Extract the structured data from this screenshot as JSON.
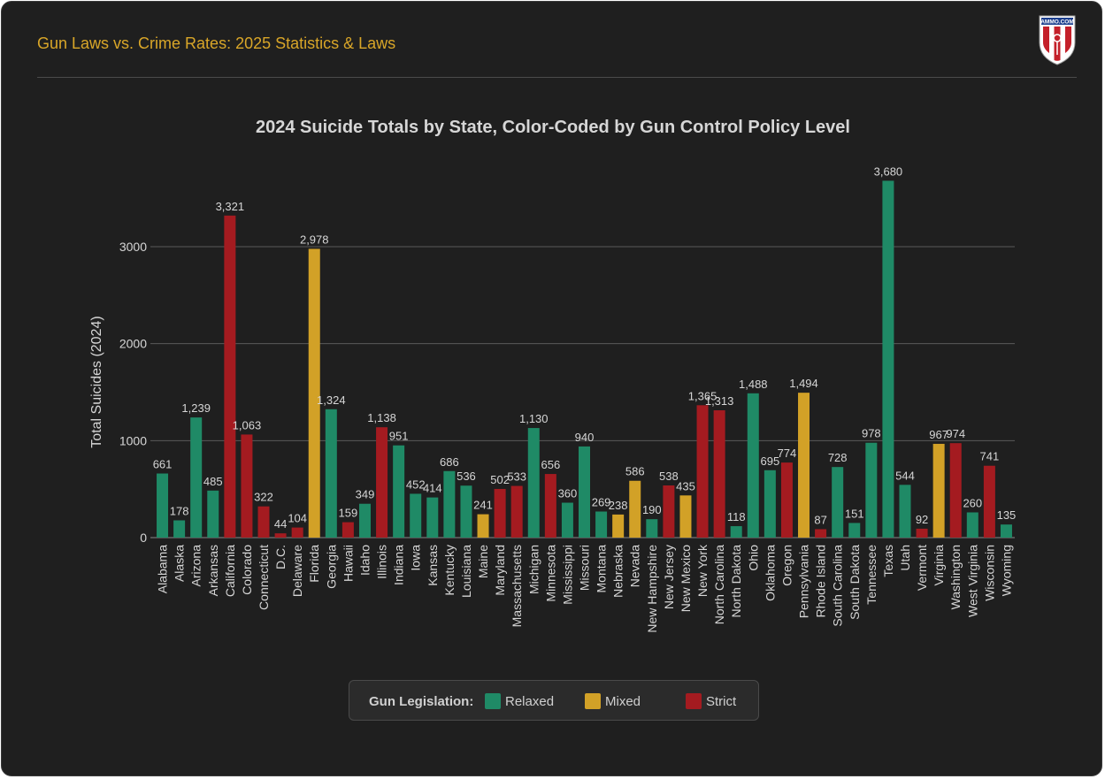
{
  "header": {
    "title": "Gun Laws vs. Crime Rates: 2025 Statistics & Laws",
    "logo_text": "AMMO.COM"
  },
  "colors": {
    "Relaxed": "#1f8a66",
    "Mixed": "#d2a127",
    "Strict": "#a41b20",
    "grid": "#5a5a5a",
    "text": "#d6d6d6"
  },
  "legend": {
    "title": "Gun Legislation:",
    "items": [
      {
        "label": "Relaxed",
        "color": "#1f8a66"
      },
      {
        "label": "Mixed",
        "color": "#d2a127"
      },
      {
        "label": "Strict",
        "color": "#a41b20"
      }
    ]
  },
  "chart_data": {
    "type": "bar",
    "title": "2024 Suicide Totals by State, Color-Coded by Gun Control Policy Level",
    "xlabel": "",
    "ylabel": "Total Suicides (2024)",
    "ylim": [
      0,
      3700
    ],
    "yticks": [
      0,
      1000,
      2000,
      3000
    ],
    "grid": true,
    "legend_position": "bottom-center",
    "categories": [
      "Alabama",
      "Alaska",
      "Arizona",
      "Arkansas",
      "California",
      "Colorado",
      "Connecticut",
      "D.C.",
      "Delaware",
      "Florida",
      "Georgia",
      "Hawaii",
      "Idaho",
      "Illinois",
      "Indiana",
      "Iowa",
      "Kansas",
      "Kentucky",
      "Louisiana",
      "Maine",
      "Maryland",
      "Massachusetts",
      "Michigan",
      "Minnesota",
      "Mississippi",
      "Missouri",
      "Montana",
      "Nebraska",
      "Nevada",
      "New Hampshire",
      "New Jersey",
      "New Mexico",
      "New York",
      "North Carolina",
      "North Dakota",
      "Ohio",
      "Oklahoma",
      "Oregon",
      "Pennsylvania",
      "Rhode Island",
      "South Carolina",
      "South Dakota",
      "Tennessee",
      "Texas",
      "Utah",
      "Vermont",
      "Virginia",
      "Washington",
      "West Virginia",
      "Wisconsin",
      "Wyoming"
    ],
    "values": [
      661,
      178,
      1239,
      485,
      3321,
      1063,
      322,
      44,
      104,
      2978,
      1324,
      159,
      349,
      1138,
      951,
      452,
      414,
      686,
      536,
      241,
      502,
      533,
      1130,
      656,
      360,
      940,
      269,
      238,
      586,
      190,
      538,
      435,
      1365,
      1313,
      118,
      1488,
      695,
      774,
      1494,
      87,
      728,
      151,
      978,
      3680,
      544,
      92,
      967,
      974,
      260,
      741,
      135
    ],
    "labels": [
      "661",
      "178",
      "1,239",
      "485",
      "3,321",
      "1,063",
      "322",
      "44",
      "104",
      "2,978",
      "1,324",
      "159",
      "349",
      "1,138",
      "951",
      "452",
      "414",
      "686",
      "536",
      "241",
      "502",
      "533",
      "1,130",
      "656",
      "360",
      "940",
      "269",
      "238",
      "586",
      "190",
      "538",
      "435",
      "1,365",
      "1,313",
      "118",
      "1,488",
      "695",
      "774",
      "1,494",
      "87",
      "728",
      "151",
      "978",
      "3,680",
      "544",
      "92",
      "967",
      "974",
      "260",
      "741",
      "135"
    ],
    "policy": [
      "Relaxed",
      "Relaxed",
      "Relaxed",
      "Relaxed",
      "Strict",
      "Strict",
      "Strict",
      "Strict",
      "Strict",
      "Mixed",
      "Relaxed",
      "Strict",
      "Relaxed",
      "Strict",
      "Relaxed",
      "Relaxed",
      "Relaxed",
      "Relaxed",
      "Relaxed",
      "Mixed",
      "Strict",
      "Strict",
      "Relaxed",
      "Strict",
      "Relaxed",
      "Relaxed",
      "Relaxed",
      "Mixed",
      "Mixed",
      "Relaxed",
      "Strict",
      "Mixed",
      "Strict",
      "Strict",
      "Relaxed",
      "Relaxed",
      "Relaxed",
      "Strict",
      "Mixed",
      "Strict",
      "Relaxed",
      "Relaxed",
      "Relaxed",
      "Relaxed",
      "Relaxed",
      "Strict",
      "Mixed",
      "Strict",
      "Relaxed",
      "Strict",
      "Relaxed"
    ]
  }
}
